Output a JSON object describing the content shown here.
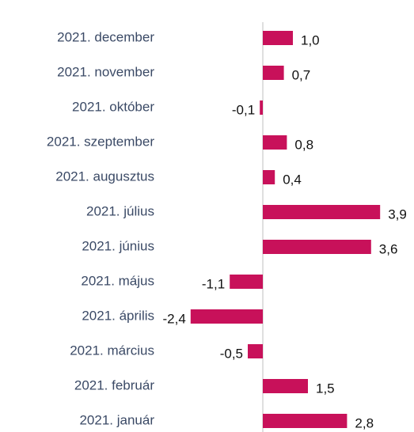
{
  "chart_data": {
    "type": "barh",
    "categories": [
      "2021. december",
      "2021. november",
      "2021. október",
      "2021. szeptember",
      "2021. augusztus",
      "2021. július",
      "2021. június",
      "2021. május",
      "2021. április",
      "2021. március",
      "2021. február",
      "2021. január"
    ],
    "values": [
      1.0,
      0.7,
      -0.1,
      0.8,
      0.4,
      3.9,
      3.6,
      -1.1,
      -2.4,
      -0.5,
      1.5,
      2.8
    ],
    "value_labels": [
      "1,0",
      "0,7",
      "-0,1",
      "0,8",
      "0,4",
      "3,9",
      "3,6",
      "-1,1",
      "-2,4",
      "-0,5",
      "1,5",
      "2,8"
    ],
    "color": "#c8115a"
  }
}
